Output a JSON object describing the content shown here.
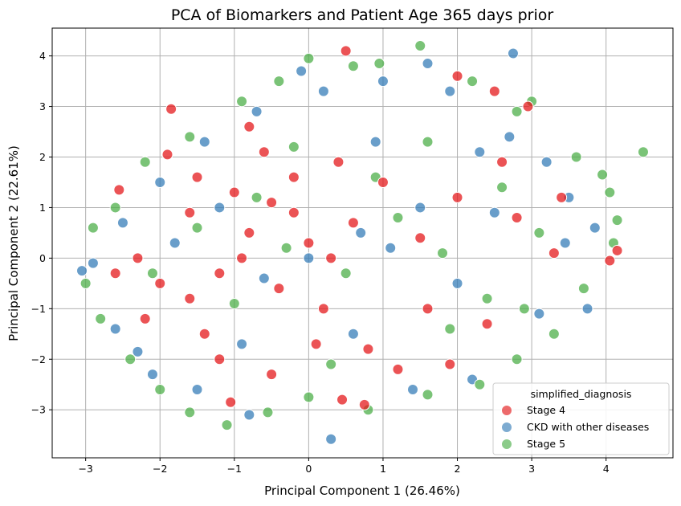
{
  "chart_data": {
    "type": "scatter",
    "title": "PCA of Biomarkers and Patient Age 365 days prior",
    "xlabel": "Principal Component 1 (26.46%)",
    "ylabel": "Principal Component 2 (22.61%)",
    "xlim": [
      -3.45,
      4.9
    ],
    "ylim": [
      -3.95,
      4.55
    ],
    "xticks": [
      -3,
      -2,
      -1,
      0,
      1,
      2,
      3,
      4
    ],
    "yticks": [
      -3,
      -2,
      -1,
      0,
      1,
      2,
      3,
      4
    ],
    "grid": true,
    "legend": {
      "title": "simplified_diagnosis",
      "placement": "lower-right",
      "entries": [
        "Stage 4",
        "CKD with other diseases",
        "Stage 5"
      ]
    },
    "series": [
      {
        "name": "Stage 4",
        "color": "#e41a1c",
        "points": [
          [
            -2.55,
            1.35
          ],
          [
            -1.9,
            2.05
          ],
          [
            -1.5,
            1.6
          ],
          [
            -1.0,
            1.3
          ],
          [
            -0.5,
            1.1
          ],
          [
            -0.2,
            0.9
          ],
          [
            0.0,
            0.3
          ],
          [
            0.3,
            0.0
          ],
          [
            -0.8,
            0.5
          ],
          [
            -1.2,
            -0.3
          ],
          [
            -1.6,
            -0.8
          ],
          [
            -2.0,
            -0.5
          ],
          [
            -2.3,
            0.0
          ],
          [
            -0.4,
            -0.6
          ],
          [
            0.2,
            -1.0
          ],
          [
            0.6,
            0.7
          ],
          [
            1.0,
            1.5
          ],
          [
            1.5,
            0.4
          ],
          [
            2.0,
            1.2
          ],
          [
            2.6,
            1.9
          ],
          [
            2.0,
            3.6
          ],
          [
            2.5,
            3.3
          ],
          [
            0.5,
            4.1
          ],
          [
            -0.8,
            2.6
          ],
          [
            -1.6,
            0.9
          ],
          [
            -2.6,
            -0.3
          ],
          [
            -1.2,
            -2.0
          ],
          [
            -0.5,
            -2.3
          ],
          [
            0.8,
            -1.8
          ],
          [
            1.6,
            -1.0
          ],
          [
            2.4,
            -1.3
          ],
          [
            3.3,
            0.1
          ],
          [
            4.05,
            -0.05
          ],
          [
            4.15,
            0.15
          ],
          [
            -1.05,
            -2.85
          ],
          [
            0.45,
            -2.8
          ],
          [
            0.75,
            -2.9
          ],
          [
            -1.85,
            2.95
          ],
          [
            2.95,
            3.0
          ],
          [
            1.9,
            -2.1
          ],
          [
            -0.2,
            1.6
          ],
          [
            0.4,
            1.9
          ],
          [
            -0.9,
            0.0
          ],
          [
            0.1,
            -1.7
          ],
          [
            1.2,
            -2.2
          ],
          [
            -1.4,
            -1.5
          ],
          [
            -2.2,
            -1.2
          ],
          [
            2.8,
            0.8
          ],
          [
            3.4,
            1.2
          ],
          [
            -0.6,
            2.1
          ]
        ]
      },
      {
        "name": "CKD with other diseases",
        "color": "#377eb8",
        "points": [
          [
            -3.05,
            -0.25
          ],
          [
            -2.9,
            -0.1
          ],
          [
            -2.5,
            0.7
          ],
          [
            -2.0,
            1.5
          ],
          [
            -1.4,
            2.3
          ],
          [
            -0.7,
            2.9
          ],
          [
            0.2,
            3.3
          ],
          [
            1.0,
            3.5
          ],
          [
            1.9,
            3.3
          ],
          [
            2.7,
            2.4
          ],
          [
            3.2,
            1.9
          ],
          [
            3.5,
            1.2
          ],
          [
            3.85,
            0.6
          ],
          [
            3.75,
            -1.0
          ],
          [
            3.1,
            -1.1
          ],
          [
            2.2,
            -2.4
          ],
          [
            1.4,
            -2.6
          ],
          [
            0.3,
            -3.58
          ],
          [
            -0.8,
            -3.1
          ],
          [
            -1.5,
            -2.6
          ],
          [
            -2.1,
            -2.3
          ],
          [
            -2.6,
            -1.4
          ],
          [
            0.0,
            0.0
          ],
          [
            0.7,
            0.5
          ],
          [
            -0.6,
            -0.4
          ],
          [
            1.5,
            1.0
          ],
          [
            2.0,
            -0.5
          ],
          [
            -1.2,
            1.0
          ],
          [
            2.75,
            4.05
          ],
          [
            1.6,
            3.85
          ],
          [
            -0.1,
            3.7
          ],
          [
            0.6,
            -1.5
          ],
          [
            1.1,
            0.2
          ],
          [
            -1.8,
            0.3
          ],
          [
            2.5,
            0.9
          ],
          [
            3.45,
            0.3
          ],
          [
            -2.3,
            -1.85
          ],
          [
            -0.9,
            -1.7
          ],
          [
            0.9,
            2.3
          ],
          [
            2.3,
            2.1
          ]
        ]
      },
      {
        "name": "Stage 5",
        "color": "#4daf4a",
        "points": [
          [
            -3.0,
            -0.5
          ],
          [
            -2.9,
            0.6
          ],
          [
            -2.6,
            1.0
          ],
          [
            -2.2,
            1.9
          ],
          [
            -1.6,
            2.4
          ],
          [
            -0.9,
            3.1
          ],
          [
            -0.4,
            3.5
          ],
          [
            0.0,
            3.95
          ],
          [
            0.6,
            3.8
          ],
          [
            0.95,
            3.85
          ],
          [
            1.5,
            4.2
          ],
          [
            2.2,
            3.5
          ],
          [
            2.8,
            2.9
          ],
          [
            3.0,
            3.1
          ],
          [
            3.6,
            2.0
          ],
          [
            3.95,
            1.65
          ],
          [
            4.05,
            1.3
          ],
          [
            4.15,
            0.75
          ],
          [
            4.5,
            2.1
          ],
          [
            4.1,
            0.3
          ],
          [
            3.7,
            -0.6
          ],
          [
            3.3,
            -1.5
          ],
          [
            2.8,
            -2.0
          ],
          [
            2.3,
            -2.5
          ],
          [
            1.6,
            -2.7
          ],
          [
            0.8,
            -3.0
          ],
          [
            0.0,
            -2.75
          ],
          [
            -0.55,
            -3.05
          ],
          [
            -1.1,
            -3.3
          ],
          [
            -1.6,
            -3.05
          ],
          [
            -2.0,
            -2.6
          ],
          [
            -2.4,
            -2.0
          ],
          [
            -2.8,
            -1.2
          ],
          [
            -0.3,
            0.2
          ],
          [
            0.5,
            -0.3
          ],
          [
            1.2,
            0.8
          ],
          [
            1.8,
            0.1
          ],
          [
            2.4,
            -0.8
          ],
          [
            -1.0,
            -0.9
          ],
          [
            -1.5,
            0.6
          ],
          [
            -0.2,
            2.2
          ],
          [
            0.9,
            1.6
          ],
          [
            1.6,
            2.3
          ],
          [
            2.6,
            1.4
          ],
          [
            3.1,
            0.5
          ],
          [
            0.3,
            -2.1
          ],
          [
            -0.7,
            1.2
          ],
          [
            1.9,
            -1.4
          ],
          [
            -2.1,
            -0.3
          ],
          [
            2.9,
            -1.0
          ]
        ]
      }
    ]
  }
}
